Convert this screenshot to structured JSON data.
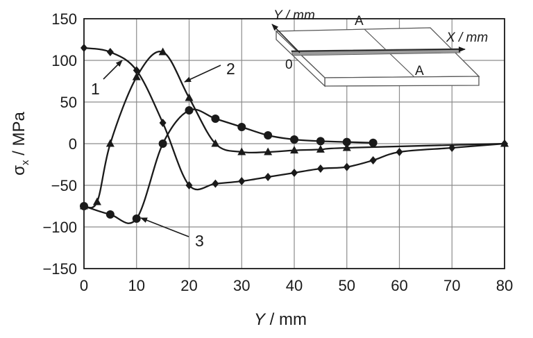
{
  "chart_data": {
    "type": "line",
    "xlabel": "Y / mm",
    "ylabel": "σx / MPa",
    "xlim": [
      0,
      80
    ],
    "ylim": [
      -150,
      150
    ],
    "x_ticks": [
      "0",
      "10",
      "20",
      "30",
      "40",
      "50",
      "60",
      "70",
      "80"
    ],
    "y_ticks": [
      "150",
      "100",
      "50",
      "0",
      "−50",
      "−100",
      "−150"
    ],
    "grid": true,
    "series": [
      {
        "name": "1",
        "marker": "diamond",
        "points": [
          [
            0,
            115
          ],
          [
            5,
            110
          ],
          [
            10,
            88
          ],
          [
            15,
            25
          ],
          [
            20,
            -50
          ],
          [
            25,
            -48
          ],
          [
            30,
            -45
          ],
          [
            35,
            -40
          ],
          [
            40,
            -35
          ],
          [
            45,
            -30
          ],
          [
            50,
            -28
          ],
          [
            55,
            -20
          ],
          [
            60,
            -10
          ],
          [
            70,
            -5
          ],
          [
            80,
            0
          ]
        ]
      },
      {
        "name": "2",
        "marker": "triangle",
        "points": [
          [
            0,
            -75
          ],
          [
            2.5,
            -70
          ],
          [
            5,
            0
          ],
          [
            10,
            80
          ],
          [
            15,
            110
          ],
          [
            20,
            55
          ],
          [
            25,
            0
          ],
          [
            30,
            -10
          ],
          [
            35,
            -10
          ],
          [
            40,
            -8
          ],
          [
            45,
            -7
          ],
          [
            50,
            -5
          ],
          [
            80,
            0
          ]
        ]
      },
      {
        "name": "3",
        "marker": "circle",
        "points": [
          [
            0,
            -75
          ],
          [
            5,
            -85
          ],
          [
            10,
            -90
          ],
          [
            15,
            0
          ],
          [
            20,
            40
          ],
          [
            25,
            30
          ],
          [
            30,
            20
          ],
          [
            35,
            10
          ],
          [
            40,
            5
          ],
          [
            45,
            3
          ],
          [
            50,
            2
          ],
          [
            55,
            1
          ]
        ]
      }
    ],
    "callout_labels": [
      "1",
      "2",
      "3"
    ],
    "inset": {
      "y_axis_label": "Y / mm",
      "x_axis_label": "X / mm",
      "origin_label": "0",
      "section_label_top": "A",
      "section_label_bottom": "A"
    }
  }
}
